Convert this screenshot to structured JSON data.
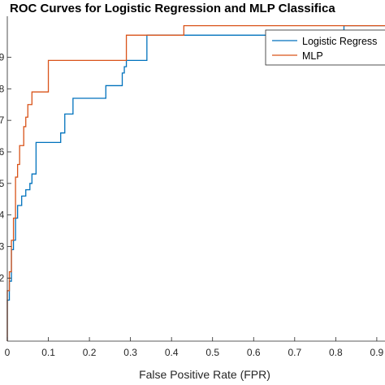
{
  "chart_data": {
    "type": "line",
    "title": "ROC Curves for Logistic Regression and MLP Classifica",
    "xlabel": "False Positive Rate (FPR)",
    "ylabel": "",
    "xlim": [
      0,
      0.92
    ],
    "ylim": [
      0,
      1.03
    ],
    "x_ticks": [
      0,
      0.1,
      0.2,
      0.3,
      0.4,
      0.5,
      0.6,
      0.7,
      0.8,
      0.9
    ],
    "x_tick_labels": [
      "0",
      "0.1",
      "0.2",
      "0.3",
      "0.4",
      "0.5",
      "0.6",
      "0.7",
      "0.8",
      "0.9"
    ],
    "y_ticks": [
      0.2,
      0.3,
      0.4,
      0.5,
      0.6,
      0.7,
      0.8,
      0.9
    ],
    "y_tick_labels": [
      "2",
      "3",
      "4",
      "5",
      "6",
      "7",
      "8",
      "9"
    ],
    "grid": false,
    "legend_position": "top-right",
    "series": [
      {
        "name": "Logistic Regress",
        "color": "#0072BD",
        "points": [
          [
            0,
            0
          ],
          [
            0,
            0.13
          ],
          [
            0.005,
            0.13
          ],
          [
            0.005,
            0.19
          ],
          [
            0.01,
            0.19
          ],
          [
            0.01,
            0.29
          ],
          [
            0.015,
            0.29
          ],
          [
            0.015,
            0.32
          ],
          [
            0.02,
            0.32
          ],
          [
            0.02,
            0.39
          ],
          [
            0.025,
            0.39
          ],
          [
            0.025,
            0.43
          ],
          [
            0.035,
            0.43
          ],
          [
            0.035,
            0.46
          ],
          [
            0.045,
            0.46
          ],
          [
            0.045,
            0.48
          ],
          [
            0.055,
            0.48
          ],
          [
            0.055,
            0.5
          ],
          [
            0.06,
            0.5
          ],
          [
            0.06,
            0.53
          ],
          [
            0.07,
            0.53
          ],
          [
            0.07,
            0.63
          ],
          [
            0.13,
            0.63
          ],
          [
            0.13,
            0.66
          ],
          [
            0.14,
            0.66
          ],
          [
            0.14,
            0.72
          ],
          [
            0.16,
            0.72
          ],
          [
            0.16,
            0.77
          ],
          [
            0.24,
            0.77
          ],
          [
            0.24,
            0.81
          ],
          [
            0.28,
            0.81
          ],
          [
            0.28,
            0.85
          ],
          [
            0.285,
            0.85
          ],
          [
            0.285,
            0.87
          ],
          [
            0.29,
            0.87
          ],
          [
            0.29,
            0.89
          ],
          [
            0.34,
            0.89
          ],
          [
            0.34,
            0.97
          ],
          [
            0.82,
            0.97
          ],
          [
            0.82,
            1.0
          ],
          [
            0.92,
            1.0
          ]
        ]
      },
      {
        "name": "MLP",
        "color": "#D95319",
        "points": [
          [
            0,
            0
          ],
          [
            0,
            0.16
          ],
          [
            0.005,
            0.16
          ],
          [
            0.005,
            0.22
          ],
          [
            0.01,
            0.22
          ],
          [
            0.01,
            0.32
          ],
          [
            0.015,
            0.32
          ],
          [
            0.015,
            0.39
          ],
          [
            0.02,
            0.39
          ],
          [
            0.02,
            0.52
          ],
          [
            0.025,
            0.52
          ],
          [
            0.025,
            0.56
          ],
          [
            0.03,
            0.56
          ],
          [
            0.03,
            0.62
          ],
          [
            0.04,
            0.62
          ],
          [
            0.04,
            0.68
          ],
          [
            0.045,
            0.68
          ],
          [
            0.045,
            0.71
          ],
          [
            0.05,
            0.71
          ],
          [
            0.05,
            0.75
          ],
          [
            0.06,
            0.75
          ],
          [
            0.06,
            0.79
          ],
          [
            0.1,
            0.79
          ],
          [
            0.1,
            0.89
          ],
          [
            0.29,
            0.89
          ],
          [
            0.29,
            0.97
          ],
          [
            0.43,
            0.97
          ],
          [
            0.43,
            1.0
          ],
          [
            0.92,
            1.0
          ]
        ]
      }
    ]
  }
}
